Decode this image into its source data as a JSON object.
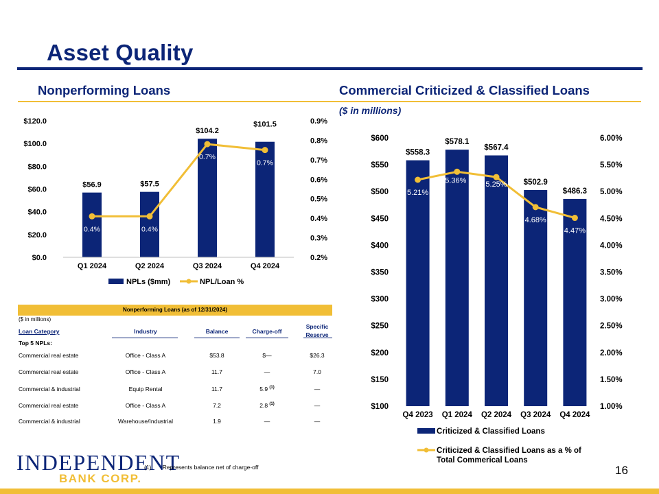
{
  "page": {
    "title": "Asset Quality",
    "page_number": "16"
  },
  "left": {
    "heading": "Nonperforming Loans",
    "legend": {
      "bar": "NPLs ($mm)",
      "line": "NPL/Loan %"
    }
  },
  "right": {
    "heading": "Commercial Criticized & Classified Loans",
    "units": "($ in millions)",
    "legend": {
      "bar": "Criticized & Classified Loans",
      "line_1": "Criticized & Classified Loans as a % of",
      "line_2": "Total Commerical Loans"
    }
  },
  "chart_data": [
    {
      "type": "bar",
      "title": "Nonperforming Loans",
      "categories": [
        "Q1 2024",
        "Q2 2024",
        "Q3 2024",
        "Q4 2024"
      ],
      "series": [
        {
          "name": "NPLs ($mm)",
          "axis": "left",
          "values": [
            56.9,
            57.5,
            104.2,
            101.5
          ],
          "labels": [
            "$56.9",
            "$57.5",
            "$104.2",
            "$101.5"
          ]
        },
        {
          "name": "NPL/Loan %",
          "type": "line",
          "axis": "right",
          "values": [
            0.4,
            0.4,
            0.7,
            0.7
          ],
          "labels": [
            "0.4%",
            "0.4%",
            "0.7%",
            "0.7%"
          ],
          "plot_values": [
            0.41,
            0.41,
            0.78,
            0.75
          ]
        }
      ],
      "ylim": [
        0,
        120
      ],
      "y2lim": [
        0.2,
        0.9
      ],
      "yticks": [
        "$0.0",
        "$20.0",
        "$40.0",
        "$60.0",
        "$80.0",
        "$100.0",
        "$120.0"
      ],
      "y2ticks": [
        "0.2%",
        "0.3%",
        "0.4%",
        "0.5%",
        "0.6%",
        "0.7%",
        "0.8%",
        "0.9%"
      ],
      "colors": {
        "bar": "#0c2577",
        "line": "#f1be36"
      }
    },
    {
      "type": "bar",
      "title": "Commercial Criticized & Classified Loans",
      "categories": [
        "Q4 2023",
        "Q1 2024",
        "Q2 2024",
        "Q3 2024",
        "Q4 2024"
      ],
      "series": [
        {
          "name": "Criticized & Classified Loans",
          "axis": "left",
          "values": [
            558.3,
            578.1,
            567.4,
            502.9,
            486.3
          ],
          "labels": [
            "$558.3",
            "$578.1",
            "$567.4",
            "$502.9",
            "$486.3"
          ]
        },
        {
          "name": "Criticized & Classified Loans as a % of Total Commerical Loans",
          "type": "line",
          "axis": "right",
          "values": [
            5.21,
            5.36,
            5.25,
            4.68,
            4.47
          ],
          "labels": [
            "5.21%",
            "5.36%",
            "5.25%",
            "4.68%",
            "4.47%"
          ],
          "plot_values": [
            5.22,
            5.37,
            5.27,
            4.71,
            4.51
          ]
        }
      ],
      "ylim": [
        100,
        600
      ],
      "y2lim": [
        1.0,
        6.0
      ],
      "yticks": [
        "$100",
        "$150",
        "$200",
        "$250",
        "$300",
        "$350",
        "$400",
        "$450",
        "$500",
        "$550",
        "$600"
      ],
      "y2ticks": [
        "1.00%",
        "1.50%",
        "2.00%",
        "2.50%",
        "3.00%",
        "3.50%",
        "4.00%",
        "4.50%",
        "5.00%",
        "5.50%",
        "6.00%"
      ],
      "colors": {
        "bar": "#0c2577",
        "line": "#f1be36"
      }
    }
  ],
  "table": {
    "title": "Nonperforming Loans (as of 12/31/2024)",
    "units": "($ in millions)",
    "headers": {
      "category": "Loan Category",
      "industry": "Industry",
      "balance": "Balance",
      "chargeoff": "Charge-off",
      "reserve_1": "Specific",
      "reserve_2": "Reserve"
    },
    "section": "Top 5 NPLs:",
    "rows": [
      {
        "category": "Commercial real estate",
        "industry": "Office - Class A",
        "balance": "$53.8",
        "chargeoff": "$—",
        "note": "",
        "reserve": "$26.3"
      },
      {
        "category": "Commercial real estate",
        "industry": "Office - Class A",
        "balance": "11.7",
        "chargeoff": "—",
        "note": "",
        "reserve": "7.0"
      },
      {
        "category": "Commercial & industrial",
        "industry": "Equip Rental",
        "balance": "11.7",
        "chargeoff": "5.9",
        "note": "(1)",
        "reserve": "—"
      },
      {
        "category": "Commercial real estate",
        "industry": "Office - Class A",
        "balance": "7.2",
        "chargeoff": "2.8",
        "note": "(1)",
        "reserve": "—"
      },
      {
        "category": "Commercial & industrial",
        "industry": "Warehouse/Industrial",
        "balance": "1.9",
        "chargeoff": "—",
        "note": "",
        "reserve": "—"
      }
    ]
  },
  "footnote": {
    "marker": "(1)",
    "text": "Represents balance net of charge-off"
  },
  "logo": {
    "line1": "INDEPENDENT",
    "line2": "BANK CORP."
  }
}
